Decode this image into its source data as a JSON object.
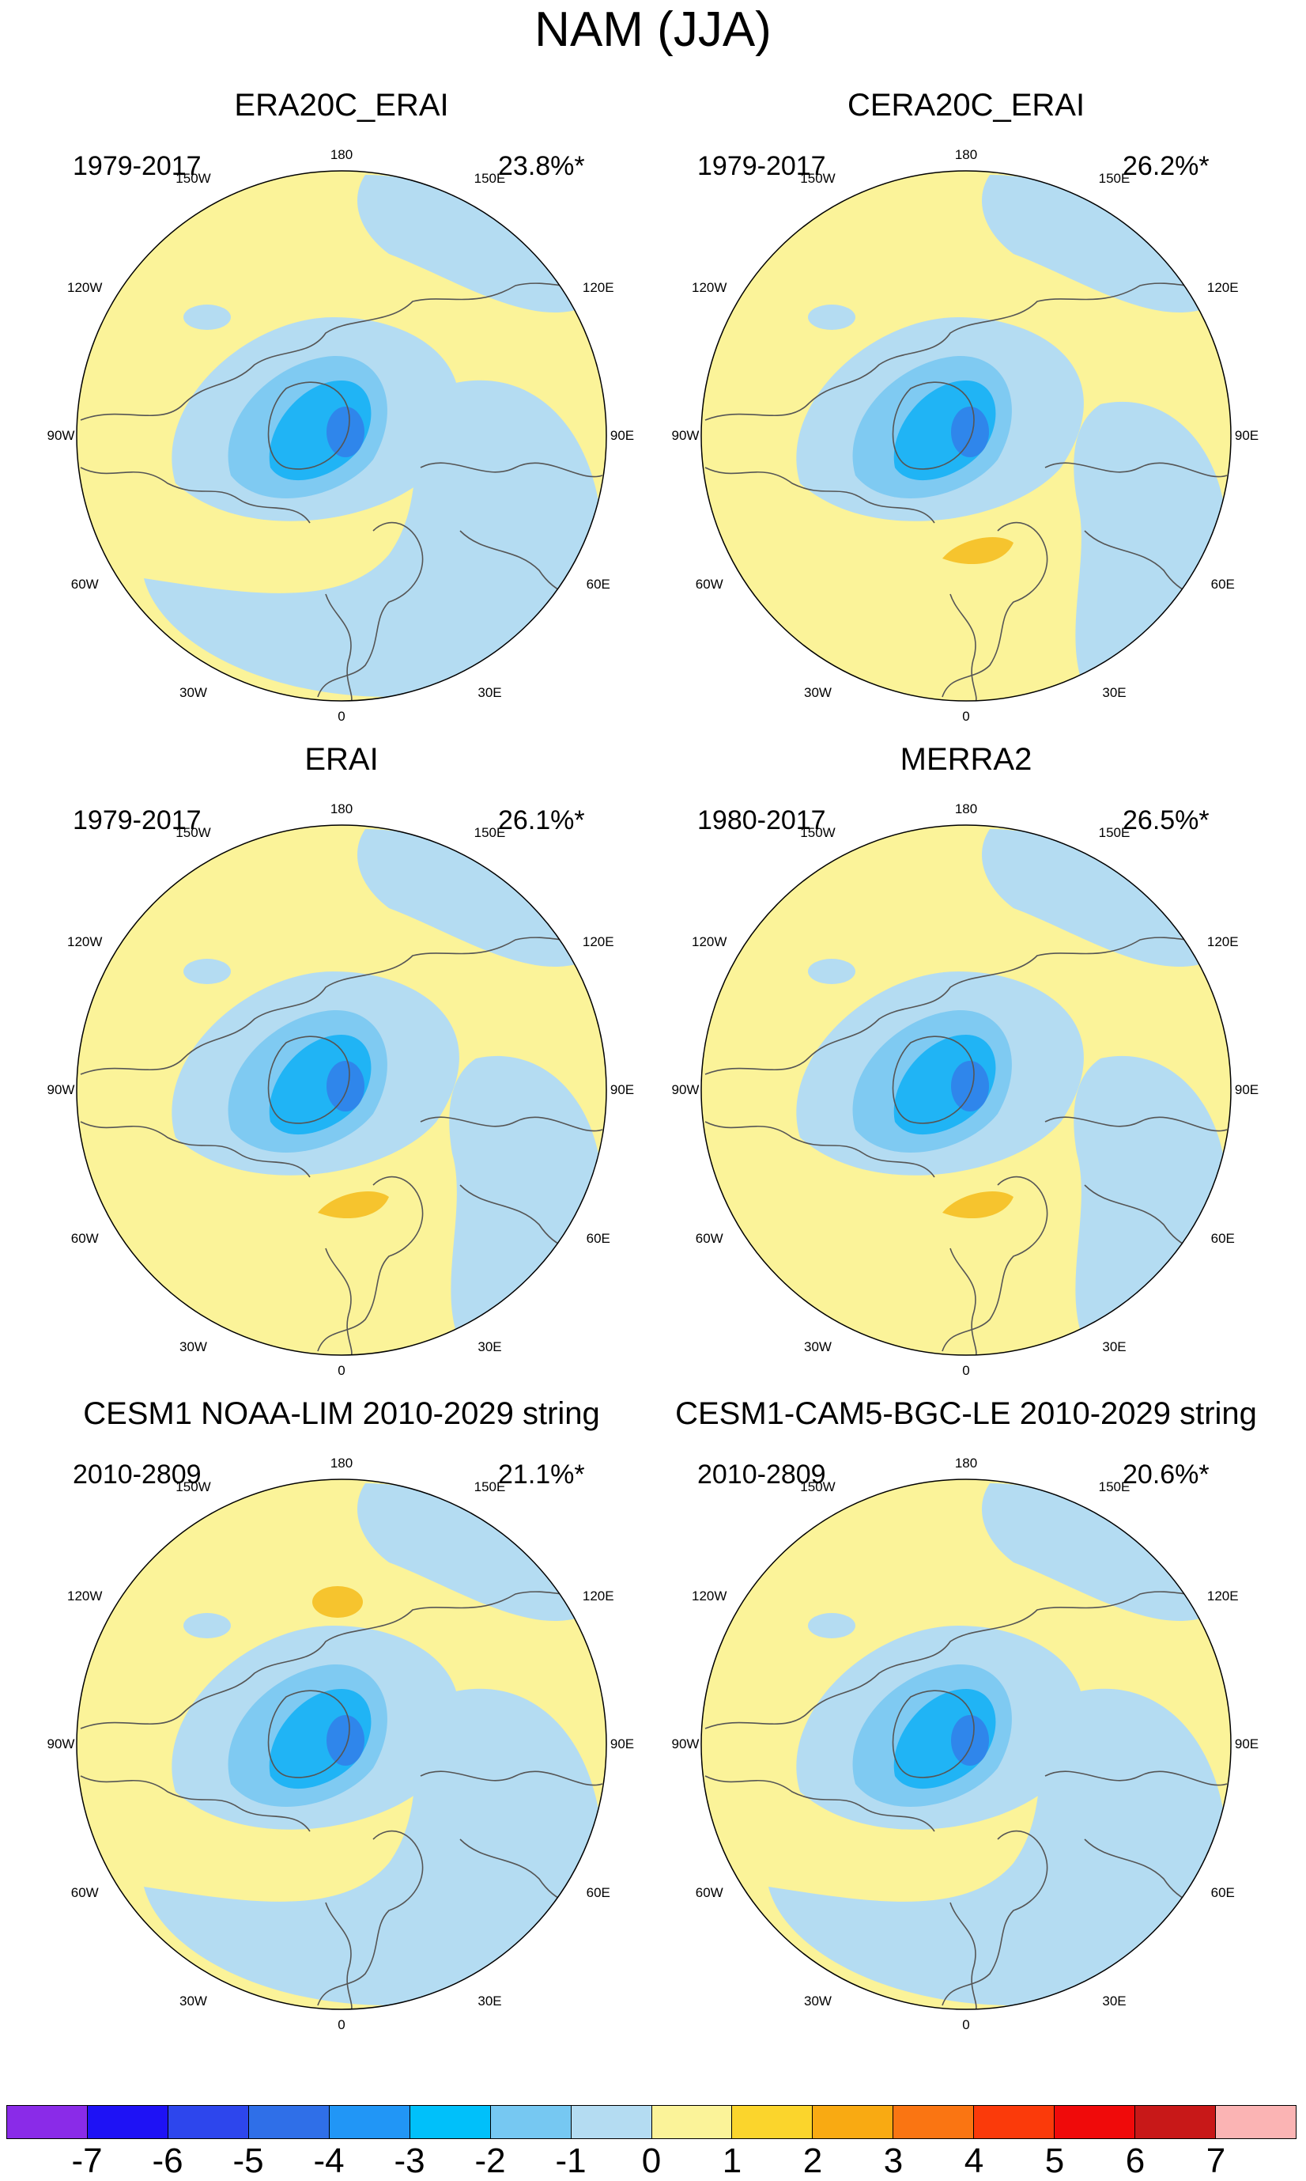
{
  "title": "NAM (JJA)",
  "colors": {
    "ocean_yellow": "#fbf399",
    "light_blue": "#b4dcf2",
    "mid_blue": "#7fcaf2",
    "cyan_blue": "#20b4f5",
    "deep_blue": "#2f86eb",
    "orange": "#f6c42e",
    "coast": "#555555"
  },
  "panels": [
    {
      "title": "ERA20C_ERAI",
      "period": "1979-2017",
      "variance": "23.8%*",
      "positive_anomaly": false
    },
    {
      "title": "CERA20C_ERAI",
      "period": "1979-2017",
      "variance": "26.2%*",
      "positive_anomaly": true
    },
    {
      "title": "ERAI",
      "period": "1979-2017",
      "variance": "26.1%*",
      "positive_anomaly": true
    },
    {
      "title": "MERRA2",
      "period": "1980-2017",
      "variance": "26.5%*",
      "positive_anomaly": true
    },
    {
      "title": "CESM1 NOAA-LIM 2010-2029 string",
      "period": "2010-2809",
      "variance": "21.1%*",
      "positive_anomaly": true
    },
    {
      "title": "CESM1-CAM5-BGC-LE 2010-2029 string",
      "period": "2010-2809",
      "variance": "20.6%*",
      "positive_anomaly": false
    }
  ],
  "lon_labels": [
    "180",
    "150E",
    "120E",
    "90E",
    "60E",
    "30E",
    "0",
    "30W",
    "60W",
    "90W",
    "120W",
    "150W"
  ],
  "colorbar": {
    "colors": [
      "#8a2be8",
      "#1e12f5",
      "#2d46ed",
      "#2f6fe8",
      "#2196f6",
      "#00c0fa",
      "#76c8f2",
      "#b4dcf2",
      "#fbf399",
      "#fbd52c",
      "#f9aa12",
      "#fa7512",
      "#fb3a0a",
      "#f00a0a",
      "#c81818",
      "#fbb4b4"
    ],
    "labels": [
      "-7",
      "-6",
      "-5",
      "-4",
      "-3",
      "-2",
      "-1",
      "0",
      "1",
      "2",
      "3",
      "4",
      "5",
      "6",
      "7"
    ]
  }
}
